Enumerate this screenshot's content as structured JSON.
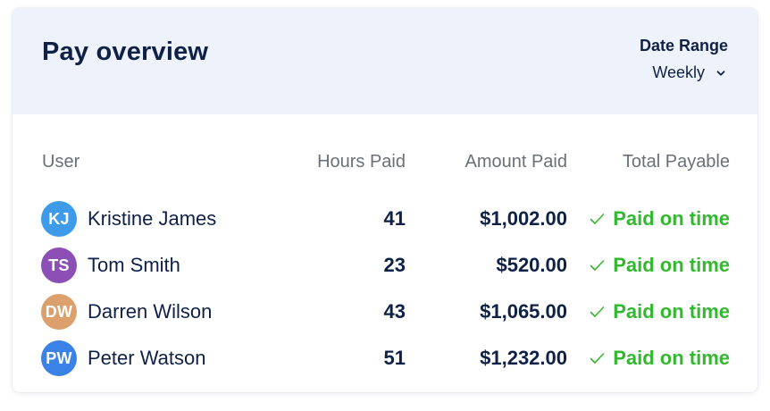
{
  "header": {
    "title": "Pay overview",
    "date_range_label": "Date Range",
    "date_range_value": "Weekly"
  },
  "table": {
    "columns": [
      "User",
      "Hours Paid",
      "Amount Paid",
      "Total Payable"
    ],
    "rows": [
      {
        "initials": "KJ",
        "name": "Kristine James",
        "hours": "41",
        "amount": "$1,002.00",
        "status": "Paid on time",
        "avatar_color": "#3d9be9"
      },
      {
        "initials": "TS",
        "name": "Tom Smith",
        "hours": "23",
        "amount": "$520.00",
        "status": "Paid on time",
        "avatar_color": "#8c4fb5"
      },
      {
        "initials": "DW",
        "name": "Darren Wilson",
        "hours": "43",
        "amount": "$1,065.00",
        "status": "Paid on time",
        "avatar_color": "#dca06c"
      },
      {
        "initials": "PW",
        "name": "Peter Watson",
        "hours": "51",
        "amount": "$1,232.00",
        "status": "Paid on time",
        "avatar_color": "#3b82e6"
      }
    ]
  },
  "icons": {
    "dropdown": "chevron-down-icon",
    "status": "checkmark-icon"
  },
  "colors": {
    "primary_text": "#0f2147",
    "muted_text": "#6b6f78",
    "header_bg": "#eef2fa",
    "status_green": "#33b82f"
  }
}
